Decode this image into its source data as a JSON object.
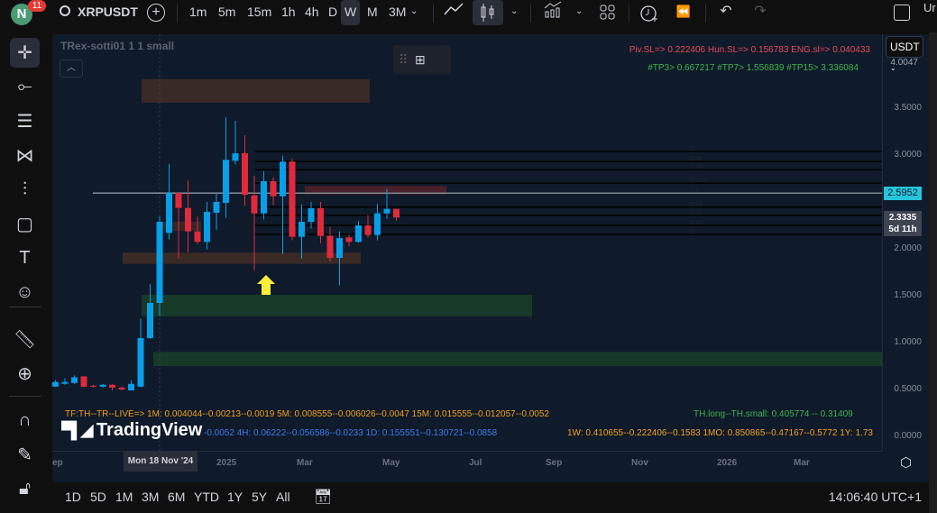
{
  "header": {
    "avatar_letter": "N",
    "notification_count": "11",
    "symbol": "XRPUSDT",
    "timeframes": [
      "1m",
      "5m",
      "15m",
      "1h",
      "4h",
      "D",
      "W",
      "M",
      "3M"
    ],
    "active_timeframe": "W",
    "right_cut_text": "Ur"
  },
  "toolbar_icons": [
    "crosshair-icon",
    "trend-line-icon",
    "fib-icon",
    "pattern-icon",
    "forecast-icon",
    "rectangle-icon",
    "text-icon",
    "emoji-icon",
    "ruler-icon",
    "zoom-in-icon",
    "magnet-icon",
    "lock-drawing-icon",
    "unlock-icon"
  ],
  "chart": {
    "indicator_title": "TRex-sotti01 1 1 small",
    "currency": "USDT",
    "sl_text": "Piv.SL=> 0.222406  Hun.SL=> 0.156783  ENG.sl=> 0.040433",
    "tp_text": "#TP3> 0.667217  #TP7> 1.556839  #TP15> 3.336084",
    "tf_line1": "TF:TH--TR--LIVE=>  1M: 0.004044--0.00213--0.0019     5M: 0.008555--0.006026--0.0047     15M: 0.015555--0.012057--0.0052",
    "tf_line2": "-0.0052     4H: 0.06222--0.056586--0.0233     1D: 0.155551--0.130721--0.0858",
    "tf_line3": "1W: 0.410655--0.222406--0.1583     1MO: 0.850865--0.47167--0.5772     1Y: 1.73",
    "th_text": "TH.long--TH.small: 0.405774 -- 0.31409",
    "logo_text": "TradingView",
    "price_ticks": [
      "4.0047",
      "3.5000",
      "3.0000",
      "2.0000",
      "1.5000",
      "1.0000",
      "0.5000",
      "0.0000"
    ],
    "price_tick_values": [
      4.0047,
      3.5,
      3.0,
      2.0,
      1.5,
      1.0,
      0.5,
      0.0
    ],
    "crosshair_price": "2.5952",
    "last_price": "2.3335",
    "countdown": "5d 11h",
    "crosshair_date": "Mon 18 Nov '24",
    "time_ticks": [
      "ep",
      "2025",
      "Mar",
      "May",
      "Jul",
      "Sep",
      "Nov",
      "2026",
      "Mar"
    ],
    "fib_levels": [
      "1",
      "0.88",
      "0.78",
      "0.618",
      "0.5",
      "0.33",
      "0.23",
      "0.11",
      "0"
    ],
    "colors": {
      "up": "#089ee8",
      "down": "#e02a3c",
      "bg": "#0f1a2a",
      "arrow": "#ffeb3b"
    }
  },
  "chart_data": {
    "type": "candlestick",
    "ylim": [
      0,
      3.5
    ],
    "interval": "1W",
    "candles": [
      {
        "t": "2024-08-26",
        "o": 0.56,
        "h": 0.58,
        "l": 0.5,
        "c": 0.53
      },
      {
        "t": "2024-09-02",
        "o": 0.53,
        "h": 0.6,
        "l": 0.53,
        "c": 0.58
      },
      {
        "t": "2024-09-09",
        "o": 0.56,
        "h": 0.62,
        "l": 0.55,
        "c": 0.58
      },
      {
        "t": "2024-09-16",
        "o": 0.57,
        "h": 0.65,
        "l": 0.56,
        "c": 0.63
      },
      {
        "t": "2024-09-23",
        "o": 0.64,
        "h": 0.64,
        "l": 0.52,
        "c": 0.53
      },
      {
        "t": "2024-09-30",
        "o": 0.54,
        "h": 0.55,
        "l": 0.52,
        "c": 0.53
      },
      {
        "t": "2024-10-07",
        "o": 0.53,
        "h": 0.56,
        "l": 0.52,
        "c": 0.55
      },
      {
        "t": "2024-10-14",
        "o": 0.55,
        "h": 0.56,
        "l": 0.49,
        "c": 0.52
      },
      {
        "t": "2024-10-21",
        "o": 0.52,
        "h": 0.53,
        "l": 0.49,
        "c": 0.5
      },
      {
        "t": "2024-10-28",
        "o": 0.49,
        "h": 0.6,
        "l": 0.49,
        "c": 0.56
      },
      {
        "t": "2024-11-04",
        "o": 0.53,
        "h": 1.257,
        "l": 0.52,
        "c": 1.048
      },
      {
        "t": "2024-11-11",
        "o": 1.048,
        "h": 1.625,
        "l": 1.04,
        "c": 1.423
      },
      {
        "t": "2024-11-18",
        "o": 1.423,
        "h": 2.346,
        "l": 1.282,
        "c": 2.288
      },
      {
        "t": "2024-11-25",
        "o": 2.17,
        "h": 2.907,
        "l": 2.1,
        "c": 2.596
      },
      {
        "t": "2024-12-02",
        "o": 2.596,
        "h": 2.6,
        "l": 1.897,
        "c": 2.436
      },
      {
        "t": "2024-12-09",
        "o": 2.436,
        "h": 2.731,
        "l": 1.962,
        "c": 2.186
      },
      {
        "t": "2024-12-16",
        "o": 2.186,
        "h": 2.346,
        "l": 2.05,
        "c": 2.074
      },
      {
        "t": "2024-12-23",
        "o": 2.074,
        "h": 2.5,
        "l": 1.993,
        "c": 2.394
      },
      {
        "t": "2024-12-30",
        "o": 2.385,
        "h": 2.587,
        "l": 2.202,
        "c": 2.5
      },
      {
        "t": "2025-01-06",
        "o": 2.49,
        "h": 3.404,
        "l": 2.33,
        "c": 2.949
      },
      {
        "t": "2025-01-13",
        "o": 2.939,
        "h": 3.365,
        "l": 2.9,
        "c": 3.019
      },
      {
        "t": "2025-01-20",
        "o": 3.019,
        "h": 3.212,
        "l": 2.458,
        "c": 2.577
      },
      {
        "t": "2025-01-27",
        "o": 2.57,
        "h": 2.779,
        "l": 1.769,
        "c": 2.378
      },
      {
        "t": "2025-02-03",
        "o": 2.378,
        "h": 2.827,
        "l": 2.314,
        "c": 2.721
      },
      {
        "t": "2025-02-10",
        "o": 2.721,
        "h": 2.763,
        "l": 2.468,
        "c": 2.561
      },
      {
        "t": "2025-02-17",
        "o": 2.561,
        "h": 2.994,
        "l": 1.945,
        "c": 2.93
      },
      {
        "t": "2025-02-24",
        "o": 2.93,
        "h": 2.962,
        "l": 2.09,
        "c": 2.128
      },
      {
        "t": "2025-03-03",
        "o": 2.128,
        "h": 2.474,
        "l": 1.897,
        "c": 2.288
      },
      {
        "t": "2025-03-10",
        "o": 2.288,
        "h": 2.5,
        "l": 2.218,
        "c": 2.433
      },
      {
        "t": "2025-03-17",
        "o": 2.433,
        "h": 2.5,
        "l": 2.058,
        "c": 2.138
      },
      {
        "t": "2025-03-24",
        "o": 2.138,
        "h": 2.234,
        "l": 1.865,
        "c": 1.904
      },
      {
        "t": "2025-03-31",
        "o": 1.904,
        "h": 2.186,
        "l": 1.609,
        "c": 2.115
      },
      {
        "t": "2025-04-07",
        "o": 2.122,
        "h": 2.147,
        "l": 2.026,
        "c": 2.074
      },
      {
        "t": "2025-04-14",
        "o": 2.074,
        "h": 2.298,
        "l": 2.066,
        "c": 2.25
      },
      {
        "t": "2025-04-21",
        "o": 2.25,
        "h": 2.362,
        "l": 2.122,
        "c": 2.147
      },
      {
        "t": "2025-04-28",
        "o": 2.147,
        "h": 2.481,
        "l": 2.09,
        "c": 2.378
      },
      {
        "t": "2025-05-05",
        "o": 2.378,
        "h": 2.641,
        "l": 2.32,
        "c": 2.426
      },
      {
        "t": "2025-05-12",
        "o": 2.426,
        "h": 2.417,
        "l": 2.3,
        "c": 2.3335
      }
    ],
    "zones": [
      {
        "top": 3.81,
        "bottom": 3.56,
        "color": "#3a2a26"
      },
      {
        "top": 2.67,
        "bottom": 2.58,
        "color": "#4a1f2a"
      },
      {
        "top": 2.29,
        "bottom": 2.19,
        "color": "#35262a"
      },
      {
        "top": 1.96,
        "bottom": 1.84,
        "color": "#3a2a26"
      },
      {
        "top": 1.51,
        "bottom": 1.28,
        "color": "#173a28"
      },
      {
        "top": 0.9,
        "bottom": 0.75,
        "color": "#173a28"
      }
    ],
    "fib": {
      "low": 2.154,
      "high": 3.038,
      "levels": [
        1,
        0.88,
        0.78,
        0.618,
        0.5,
        0.33,
        0.23,
        0.11,
        0
      ]
    }
  }
}
